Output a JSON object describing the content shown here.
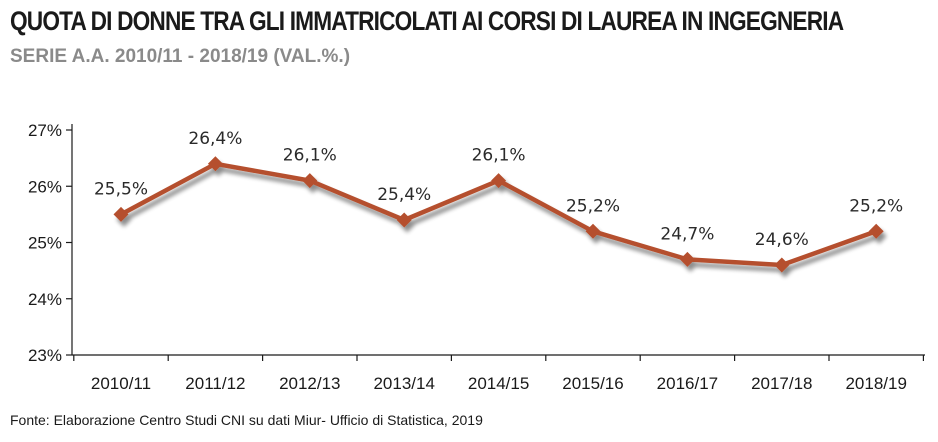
{
  "header": {
    "title": "QUOTA DI DONNE TRA GLI IMMATRICOLATI AI CORSI DI LAUREA IN INGEGNERIA",
    "subtitle": "SERIE A.A. 2010/11 - 2018/19 (VAL.%.)"
  },
  "footer": {
    "source": "Fonte: Elaborazione Centro Studi CNI su dati Miur- Ufficio di Statistica, 2019"
  },
  "chart_data": {
    "type": "line",
    "title": "QUOTA DI DONNE TRA GLI IMMATRICOLATI AI CORSI DI LAUREA IN INGEGNERIA",
    "subtitle": "SERIE A.A. 2010/11 - 2018/19 (VAL.%.)",
    "xlabel": "",
    "ylabel": "",
    "categories": [
      "2010/11",
      "2011/12",
      "2012/13",
      "2013/14",
      "2014/15",
      "2015/16",
      "2016/17",
      "2017/18",
      "2018/19"
    ],
    "values": [
      25.5,
      26.4,
      26.1,
      25.4,
      26.1,
      25.2,
      24.7,
      24.6,
      25.2
    ],
    "data_labels": [
      "25,5%",
      "26,4%",
      "26,1%",
      "25,4%",
      "26,1%",
      "25,2%",
      "24,7%",
      "24,6%",
      "25,2%"
    ],
    "ylim": [
      23,
      27
    ],
    "yticks": [
      23,
      24,
      25,
      26,
      27
    ],
    "ytick_labels": [
      "23%",
      "24%",
      "25%",
      "26%",
      "27%"
    ],
    "grid": false,
    "legend": "none",
    "line_color": "#b5502e",
    "marker": "diamond"
  }
}
